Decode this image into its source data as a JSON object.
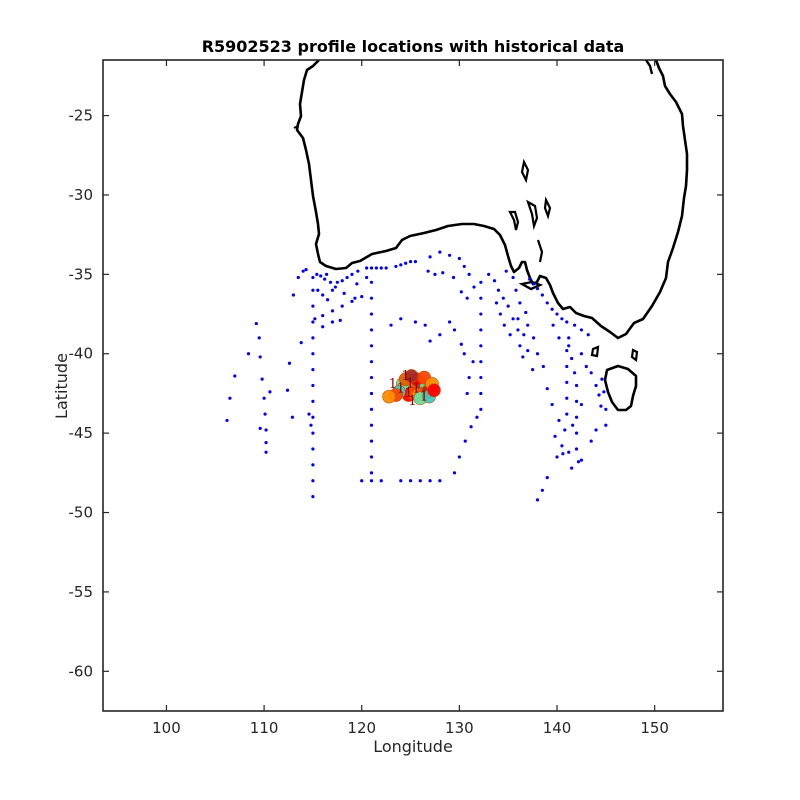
{
  "chart_data": {
    "type": "scatter",
    "title": "R5902523 profile locations with historical data",
    "xlabel": "Longitude",
    "ylabel": "Latitude",
    "xlim": [
      93.5,
      157
    ],
    "ylim": [
      -62.5,
      -21.5
    ],
    "xticks": [
      "100",
      "110",
      "120",
      "130",
      "140",
      "150"
    ],
    "yticks": [
      "-25",
      "-30",
      "-35",
      "-40",
      "-45",
      "-50",
      "-55",
      "-60"
    ],
    "grid": false,
    "coastline_color": "#000000",
    "historical_color": "#0000ff",
    "float_colors": [
      "#ff0000",
      "#ff4500",
      "#ff8c00",
      "#e06000",
      "#a52a2a",
      "#66e0a0",
      "#40c8c0"
    ],
    "series": [
      {
        "values": [
          [
            106.2,
            -44.2
          ],
          [
            106.5,
            -42.8
          ],
          [
            107.0,
            -41.4
          ],
          [
            108.4,
            -40.0
          ],
          [
            109.2,
            -38.1
          ],
          [
            109.5,
            -39.0
          ],
          [
            109.6,
            -40.2
          ],
          [
            109.8,
            -41.6
          ],
          [
            110.0,
            -42.8
          ],
          [
            110.1,
            -43.8
          ],
          [
            110.2,
            -44.8
          ],
          [
            110.2,
            -45.6
          ],
          [
            110.2,
            -46.2
          ],
          [
            109.6,
            -44.7
          ],
          [
            110.6,
            -42.4
          ],
          [
            112.4,
            -42.3
          ],
          [
            112.6,
            -40.6
          ],
          [
            112.9,
            -44.0
          ],
          [
            113.0,
            -36.3
          ],
          [
            113.5,
            -35.2
          ],
          [
            114.0,
            -34.8
          ],
          [
            114.3,
            -34.7
          ],
          [
            115.0,
            -35.2
          ],
          [
            115.0,
            -36.0
          ],
          [
            115.0,
            -37.0
          ],
          [
            115.0,
            -38.0
          ],
          [
            115.0,
            -39.0
          ],
          [
            115.0,
            -40.0
          ],
          [
            115.0,
            -41.0
          ],
          [
            115.0,
            -42.0
          ],
          [
            115.0,
            -43.0
          ],
          [
            115.0,
            -44.0
          ],
          [
            115.0,
            -45.0
          ],
          [
            115.0,
            -46.0
          ],
          [
            115.0,
            -47.0
          ],
          [
            115.0,
            -48.0
          ],
          [
            115.0,
            -49.0
          ],
          [
            114.8,
            -44.5
          ],
          [
            114.6,
            -43.8
          ],
          [
            115.5,
            -36.0
          ],
          [
            116.0,
            -36.3
          ],
          [
            116.5,
            -36.6
          ],
          [
            117.0,
            -36.0
          ],
          [
            117.5,
            -35.5
          ],
          [
            118.0,
            -35.4
          ],
          [
            118.5,
            -35.2
          ],
          [
            119.0,
            -35.0
          ],
          [
            119.6,
            -34.8
          ],
          [
            115.4,
            -35.0
          ],
          [
            116.2,
            -35.3
          ],
          [
            116.8,
            -35.5
          ],
          [
            117.3,
            -35.8
          ],
          [
            118.2,
            -36.2
          ],
          [
            119.3,
            -36.5
          ],
          [
            115.2,
            -37.8
          ],
          [
            116.0,
            -37.6
          ],
          [
            117.0,
            -37.3
          ],
          [
            118.0,
            -37.0
          ],
          [
            119.0,
            -36.7
          ],
          [
            120.0,
            -36.4
          ],
          [
            116.0,
            -38.3
          ],
          [
            117.0,
            -38.0
          ],
          [
            113.8,
            -39.3
          ],
          [
            117.8,
            -37.9
          ],
          [
            120.5,
            -34.6
          ],
          [
            121.0,
            -34.6
          ],
          [
            121.5,
            -34.6
          ],
          [
            122.0,
            -34.6
          ],
          [
            122.5,
            -34.6
          ],
          [
            123.5,
            -34.5
          ],
          [
            124.0,
            -34.4
          ],
          [
            124.5,
            -34.3
          ],
          [
            125.0,
            -34.2
          ],
          [
            121.0,
            -35.5
          ],
          [
            121.0,
            -36.5
          ],
          [
            121.0,
            -37.5
          ],
          [
            121.0,
            -38.5
          ],
          [
            121.0,
            -39.5
          ],
          [
            121.0,
            -40.5
          ],
          [
            121.0,
            -41.5
          ],
          [
            121.0,
            -42.5
          ],
          [
            121.0,
            -43.5
          ],
          [
            121.0,
            -44.5
          ],
          [
            121.0,
            -45.5
          ],
          [
            121.0,
            -46.5
          ],
          [
            121.0,
            -47.5
          ],
          [
            120.0,
            -48.0
          ],
          [
            121.0,
            -48.0
          ],
          [
            122.0,
            -48.0
          ],
          [
            124.0,
            -48.0
          ],
          [
            125.0,
            -48.0
          ],
          [
            126.0,
            -48.0
          ],
          [
            127.0,
            -48.0
          ],
          [
            128.0,
            -48.0
          ],
          [
            129.5,
            -47.5
          ],
          [
            130.0,
            -46.5
          ],
          [
            130.6,
            -45.5
          ],
          [
            131.2,
            -44.6
          ],
          [
            131.8,
            -44.0
          ],
          [
            132.2,
            -43.5
          ],
          [
            132.2,
            -42.5
          ],
          [
            132.2,
            -41.5
          ],
          [
            132.2,
            -40.5
          ],
          [
            132.2,
            -39.5
          ],
          [
            132.2,
            -38.5
          ],
          [
            132.2,
            -37.5
          ],
          [
            132.2,
            -36.5
          ],
          [
            132.2,
            -35.5
          ],
          [
            131.4,
            -40.5
          ],
          [
            131.0,
            -41.5
          ],
          [
            130.8,
            -42.5
          ],
          [
            130.5,
            -40.0
          ],
          [
            130.2,
            -39.4
          ],
          [
            129.5,
            -38.5
          ],
          [
            129.0,
            -38.0
          ],
          [
            128.0,
            -38.8
          ],
          [
            127.0,
            -39.2
          ],
          [
            126.5,
            -38.2
          ],
          [
            125.5,
            -38.0
          ],
          [
            124.0,
            -37.8
          ],
          [
            123.0,
            -38.2
          ],
          [
            125.5,
            -34.2
          ],
          [
            127.0,
            -33.9
          ],
          [
            128.0,
            -33.6
          ],
          [
            129.0,
            -33.8
          ],
          [
            130.0,
            -34.0
          ],
          [
            130.5,
            -34.5
          ],
          [
            131.0,
            -35.0
          ],
          [
            130.2,
            -36.1
          ],
          [
            130.8,
            -36.5
          ],
          [
            131.5,
            -35.8
          ],
          [
            133.0,
            -35.0
          ],
          [
            133.6,
            -35.4
          ],
          [
            134.0,
            -36.0
          ],
          [
            134.5,
            -36.5
          ],
          [
            135.0,
            -37.0
          ],
          [
            135.5,
            -37.8
          ],
          [
            136.0,
            -38.5
          ],
          [
            136.2,
            -39.5
          ],
          [
            136.5,
            -40.2
          ],
          [
            137.5,
            -41.0
          ],
          [
            138.0,
            -49.2
          ],
          [
            138.5,
            -48.6
          ],
          [
            139.0,
            -47.8
          ],
          [
            140.0,
            -46.5
          ],
          [
            140.5,
            -45.8
          ],
          [
            140.8,
            -44.8
          ],
          [
            141.0,
            -43.8
          ],
          [
            141.0,
            -42.8
          ],
          [
            141.0,
            -41.8
          ],
          [
            141.0,
            -40.8
          ],
          [
            141.0,
            -39.8
          ],
          [
            141.2,
            -39.5
          ],
          [
            141.5,
            -40.3
          ],
          [
            141.8,
            -41.2
          ],
          [
            142.0,
            -42.0
          ],
          [
            142.0,
            -43.0
          ],
          [
            142.0,
            -44.0
          ],
          [
            142.0,
            -45.0
          ],
          [
            142.0,
            -46.0
          ],
          [
            142.2,
            -46.8
          ],
          [
            141.5,
            -47.2
          ],
          [
            142.5,
            -46.7
          ],
          [
            141.2,
            -46.2
          ],
          [
            140.6,
            -46.3
          ],
          [
            139.8,
            -45.2
          ],
          [
            139.5,
            -43.2
          ],
          [
            139.0,
            -42.2
          ],
          [
            138.6,
            -40.8
          ],
          [
            138.0,
            -40.0
          ],
          [
            137.6,
            -39.0
          ],
          [
            137.0,
            -38.2
          ],
          [
            136.8,
            -37.4
          ],
          [
            136.2,
            -36.8
          ],
          [
            135.8,
            -36.0
          ],
          [
            135.5,
            -35.2
          ],
          [
            134.8,
            -34.8
          ],
          [
            142.5,
            -40.0
          ],
          [
            143.0,
            -40.8
          ],
          [
            143.5,
            -41.2
          ],
          [
            144.0,
            -42.0
          ],
          [
            144.3,
            -42.6
          ],
          [
            144.5,
            -43.3
          ],
          [
            145.0,
            -43.5
          ],
          [
            144.8,
            -42.4
          ],
          [
            144.6,
            -41.6
          ],
          [
            143.2,
            -38.8
          ],
          [
            142.5,
            -38.5
          ],
          [
            141.8,
            -38.2
          ],
          [
            141.0,
            -38.0
          ],
          [
            140.5,
            -37.8
          ],
          [
            140.0,
            -37.5
          ],
          [
            139.5,
            -37.2
          ],
          [
            139.0,
            -36.8
          ],
          [
            138.5,
            -36.3
          ],
          [
            138.0,
            -35.9
          ],
          [
            137.6,
            -35.6
          ],
          [
            137.2,
            -35.3
          ],
          [
            143.5,
            -45.5
          ],
          [
            144.0,
            -44.8
          ],
          [
            145.0,
            -44.5
          ],
          [
            142.5,
            -43.2
          ],
          [
            141.6,
            -44.5
          ],
          [
            140.2,
            -44.2
          ],
          [
            133.8,
            -36.8
          ],
          [
            134.2,
            -37.5
          ],
          [
            134.6,
            -38.2
          ],
          [
            135.2,
            -38.8
          ],
          [
            119.5,
            -35.6
          ],
          [
            120.5,
            -35.2
          ],
          [
            126.8,
            -34.8
          ],
          [
            127.5,
            -35.0
          ],
          [
            128.3,
            -34.9
          ],
          [
            129.4,
            -35.2
          ],
          [
            115.8,
            -35.1
          ],
          [
            116.4,
            -35.0
          ],
          [
            136.0,
            -37.8
          ],
          [
            136.6,
            -38.8
          ],
          [
            137.0,
            -39.8
          ],
          [
            139.6,
            -38.2
          ],
          [
            140.2,
            -39.0
          ],
          [
            141.2,
            -39.0
          ]
        ]
      },
      {
        "values": [
          [
            124.6,
            -42.2
          ],
          [
            125.0,
            -41.9
          ],
          [
            125.4,
            -42.0
          ],
          [
            125.8,
            -42.1
          ],
          [
            126.2,
            -41.9
          ],
          [
            126.6,
            -42.0
          ],
          [
            127.0,
            -42.2
          ],
          [
            124.8,
            -42.6
          ],
          [
            125.3,
            -42.5
          ],
          [
            125.8,
            -42.6
          ],
          [
            126.3,
            -42.5
          ],
          [
            126.8,
            -42.4
          ],
          [
            124.2,
            -41.9
          ],
          [
            123.8,
            -42.4
          ],
          [
            125.6,
            -41.6
          ],
          [
            126.4,
            -41.5
          ],
          [
            127.2,
            -41.9
          ],
          [
            124.5,
            -41.6
          ],
          [
            125.1,
            -41.4
          ],
          [
            126.0,
            -42.8
          ],
          [
            126.9,
            -42.7
          ],
          [
            127.4,
            -42.3
          ],
          [
            123.5,
            -42.6
          ],
          [
            122.8,
            -42.7
          ]
        ]
      }
    ],
    "annotations": [
      "1",
      "1",
      "1",
      "1",
      "1",
      "1",
      "1",
      "1"
    ]
  }
}
